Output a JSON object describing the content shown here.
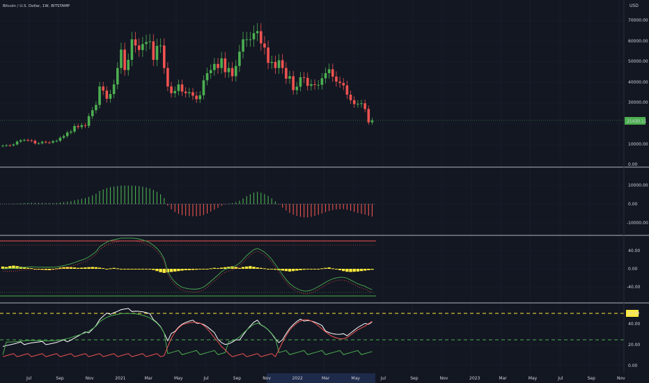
{
  "header": {
    "title": "Bitcoin / U.S. Dollar, 1W, BITSTAMP",
    "currency": "USD"
  },
  "price_axis": {
    "ticks": [
      "70000.00",
      "60000.00",
      "50000.00",
      "40000.00",
      "30000.00",
      "10000.00",
      "0.00"
    ],
    "last_price": "21430.11"
  },
  "macd_axis": {
    "ticks": [
      "10000.00",
      "0.00",
      "-10000.00"
    ]
  },
  "osc_axis": {
    "ticks": [
      "40.00",
      "0.00",
      "-40.00"
    ]
  },
  "adx_axis": {
    "ticks": [
      "40.00",
      "20.00",
      "0.00"
    ],
    "marker": "50.00"
  },
  "time_axis": [
    "Jul",
    "Sep",
    "Nov",
    "2021",
    "Mar",
    "May",
    "Jul",
    "Sep",
    "Nov",
    "2022",
    "Mar",
    "May",
    "Jul",
    "Sep",
    "Nov",
    "2023",
    "Mar",
    "May",
    "Jul",
    "Sep",
    "Nov"
  ],
  "colors": {
    "bg": "#131722",
    "up": "#26a69a",
    "green": "#4caf50",
    "red": "#ef5350",
    "yellow": "#ffeb3b",
    "white": "#ffffff",
    "text": "#d1d4dc",
    "price_label": "#4caf50",
    "marker": "#ffeb3b",
    "highlight": "#1e2a4a"
  },
  "chart_data": {
    "type": "candlestick",
    "weeks": [
      "2020-06-29",
      "2020-07-06",
      "2020-07-13",
      "2020-07-20",
      "2020-07-27",
      "2020-08-03",
      "2020-08-10",
      "2020-08-17",
      "2020-08-24",
      "2020-08-31",
      "2020-09-07",
      "2020-09-14",
      "2020-09-21",
      "2020-09-28",
      "2020-10-05",
      "2020-10-12",
      "2020-10-19",
      "2020-10-26",
      "2020-11-02",
      "2020-11-09",
      "2020-11-16",
      "2020-11-23",
      "2020-11-30",
      "2020-12-07",
      "2020-12-14",
      "2020-12-21",
      "2020-12-28",
      "2021-01-04",
      "2021-01-11",
      "2021-01-18",
      "2021-01-25",
      "2021-02-01",
      "2021-02-08",
      "2021-02-15",
      "2021-02-22",
      "2021-03-01",
      "2021-03-08",
      "2021-03-15",
      "2021-03-22",
      "2021-03-29",
      "2021-04-05",
      "2021-04-12",
      "2021-04-19",
      "2021-04-26",
      "2021-05-03",
      "2021-05-10",
      "2021-05-17",
      "2021-05-24",
      "2021-05-31",
      "2021-06-07",
      "2021-06-14",
      "2021-06-21",
      "2021-06-28",
      "2021-07-05",
      "2021-07-12",
      "2021-07-19",
      "2021-07-26",
      "2021-08-02",
      "2021-08-09",
      "2021-08-16",
      "2021-08-23",
      "2021-08-30",
      "2021-09-06",
      "2021-09-13",
      "2021-09-20",
      "2021-09-27",
      "2021-10-04",
      "2021-10-11",
      "2021-10-18",
      "2021-10-25",
      "2021-11-01",
      "2021-11-08",
      "2021-11-15",
      "2021-11-22",
      "2021-11-29",
      "2021-12-06",
      "2021-12-13",
      "2021-12-20",
      "2021-12-27",
      "2022-01-03",
      "2022-01-10",
      "2022-01-17",
      "2022-01-24",
      "2022-01-31",
      "2022-02-07",
      "2022-02-14",
      "2022-02-21",
      "2022-02-28",
      "2022-03-07",
      "2022-03-14",
      "2022-03-21",
      "2022-03-28",
      "2022-04-04",
      "2022-04-11",
      "2022-04-18",
      "2022-04-25",
      "2022-05-02",
      "2022-05-09",
      "2022-05-16",
      "2022-05-23",
      "2022-05-30",
      "2022-06-06",
      "2022-06-13",
      "2022-06-20"
    ],
    "close": [
      9100,
      9300,
      9200,
      9700,
      11100,
      11700,
      11900,
      11700,
      11500,
      10200,
      10300,
      11000,
      10700,
      10600,
      11300,
      11500,
      13000,
      13800,
      15500,
      16000,
      18700,
      18200,
      19100,
      18800,
      23500,
      26400,
      29000,
      38000,
      36000,
      32000,
      34300,
      39000,
      47000,
      56000,
      46000,
      51000,
      61000,
      58000,
      55800,
      58700,
      59700,
      60000,
      51000,
      57800,
      58000,
      47000,
      38000,
      34700,
      35800,
      39000,
      35500,
      34700,
      35200,
      33500,
      31800,
      33700,
      41000,
      44500,
      46000,
      49000,
      47000,
      51700,
      45000,
      47000,
      43000,
      48000,
      55000,
      61000,
      61000,
      61000,
      64000,
      65000,
      59000,
      57000,
      49500,
      50000,
      47000,
      50800,
      47000,
      41800,
      43000,
      36200,
      37900,
      42500,
      42200,
      38300,
      39100,
      38800,
      38800,
      42000,
      44500,
      46400,
      42800,
      40400,
      39700,
      38500,
      34000,
      31300,
      29400,
      29500,
      29800,
      27000,
      20500,
      21430
    ],
    "macd_hist": [
      0,
      50,
      100,
      150,
      250,
      400,
      500,
      600,
      650,
      600,
      550,
      550,
      500,
      500,
      550,
      600,
      800,
      1000,
      1300,
      1600,
      2000,
      2400,
      2800,
      3200,
      3800,
      4600,
      5500,
      7000,
      7800,
      8500,
      9000,
      9300,
      9500,
      9800,
      9800,
      9800,
      9800,
      9700,
      9500,
      9200,
      8800,
      8300,
      7500,
      6500,
      5200,
      3200,
      -900,
      -2800,
      -4200,
      -5200,
      -5900,
      -6200,
      -6400,
      -6500,
      -6500,
      -6300,
      -5800,
      -5000,
      -4000,
      -3000,
      -2000,
      -900,
      -200,
      200,
      500,
      1000,
      1800,
      3000,
      4200,
      5200,
      6100,
      6500,
      6000,
      5300,
      4300,
      3000,
      1400,
      -200,
      -1900,
      -3400,
      -4700,
      -5600,
      -6300,
      -6800,
      -7100,
      -7100,
      -6800,
      -6300,
      -5700,
      -5000,
      -4300,
      -3700,
      -3200,
      -2900,
      -2700,
      -2700,
      -3000,
      -3600,
      -4200,
      -4800,
      -5200,
      -5600,
      -6200,
      -6700
    ],
    "osc_bars": [
      10,
      8,
      12,
      14,
      12,
      9,
      6,
      4,
      3,
      0,
      -3,
      -4,
      -5,
      -6,
      -2,
      2,
      5,
      7,
      8,
      7,
      6,
      4,
      5,
      6,
      7,
      8,
      7,
      5,
      3,
      0,
      2,
      4,
      2,
      0,
      -3,
      0,
      -3,
      -2,
      0,
      -1,
      0,
      -2,
      -5,
      -10,
      -15,
      -18,
      -16,
      -14,
      -12,
      -10,
      -8,
      -6,
      -6,
      -5,
      -4,
      -3,
      -2,
      0,
      2,
      4,
      3,
      5,
      7,
      9,
      11,
      8,
      4,
      8,
      10,
      12,
      9,
      6,
      4,
      2,
      0,
      -2,
      -4,
      -6,
      -8,
      -10,
      -12,
      -10,
      -8,
      -6,
      -4,
      -3,
      -2,
      -1,
      0,
      2,
      4,
      6,
      2,
      -2,
      -6,
      -10,
      -13,
      -14,
      -13,
      -12,
      -10,
      -8,
      -6,
      -4
    ],
    "adx": {
      "white_line": "ADX",
      "green_line": "+DI",
      "red_line": "-DI",
      "markers": [
        50,
        25
      ]
    }
  }
}
